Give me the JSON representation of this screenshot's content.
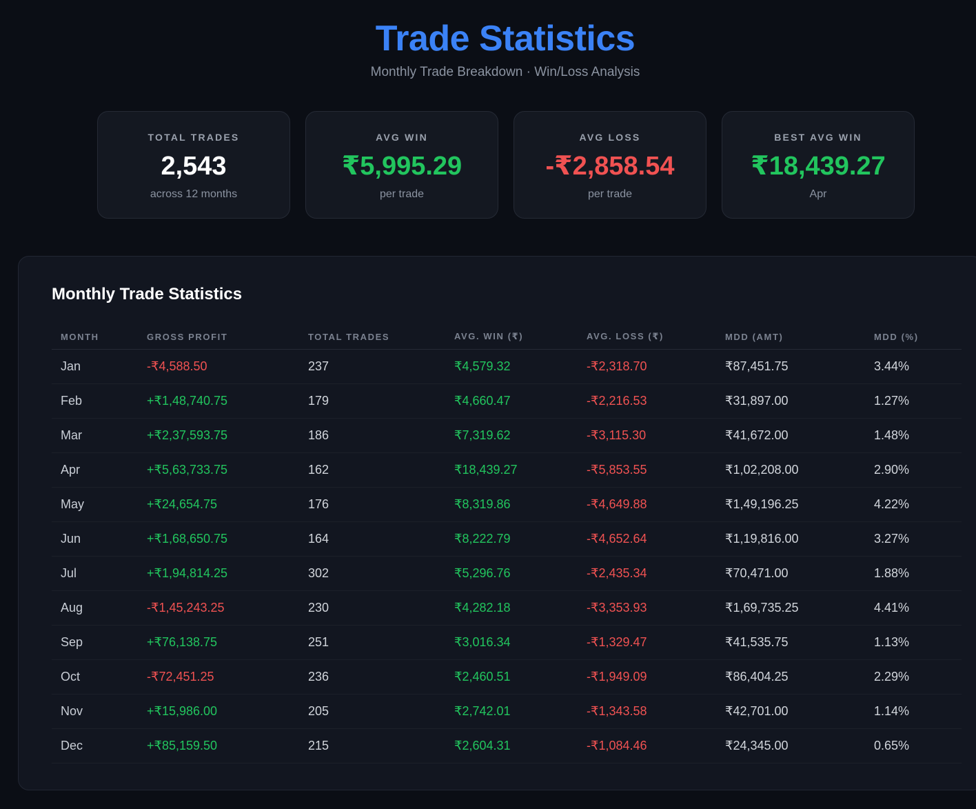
{
  "header": {
    "title": "Trade Statistics",
    "subtitle": "Monthly Trade Breakdown · Win/Loss Analysis"
  },
  "colors": {
    "accent": "#3b82f6",
    "positive": "#22c55e",
    "negative": "#f05252",
    "background": "#0b0e15"
  },
  "cards": [
    {
      "label": "TOTAL TRADES",
      "value": "2,543",
      "sub": "across 12 months",
      "tone": "neutral"
    },
    {
      "label": "AVG WIN",
      "value": "₹5,995.29",
      "sub": "per trade",
      "tone": "pos"
    },
    {
      "label": "AVG LOSS",
      "value": "-₹2,858.54",
      "sub": "per trade",
      "tone": "neg"
    },
    {
      "label": "BEST AVG WIN",
      "value": "₹18,439.27",
      "sub": "Apr",
      "tone": "pos"
    }
  ],
  "table": {
    "title": "Monthly Trade Statistics",
    "columns": [
      "MONTH",
      "GROSS PROFIT",
      "TOTAL TRADES",
      "AVG. WIN (₹)",
      "AVG. LOSS (₹)",
      "MDD (AMT)",
      "MDD (%)"
    ],
    "rows": [
      {
        "month": "Jan",
        "gross": "-₹4,588.50",
        "trades": "237",
        "avg_win": "₹4,579.32",
        "avg_loss": "-₹2,318.70",
        "mdd_amt": "₹87,451.75",
        "mdd_pct": "3.44%"
      },
      {
        "month": "Feb",
        "gross": "+₹1,48,740.75",
        "trades": "179",
        "avg_win": "₹4,660.47",
        "avg_loss": "-₹2,216.53",
        "mdd_amt": "₹31,897.00",
        "mdd_pct": "1.27%"
      },
      {
        "month": "Mar",
        "gross": "+₹2,37,593.75",
        "trades": "186",
        "avg_win": "₹7,319.62",
        "avg_loss": "-₹3,115.30",
        "mdd_amt": "₹41,672.00",
        "mdd_pct": "1.48%"
      },
      {
        "month": "Apr",
        "gross": "+₹5,63,733.75",
        "trades": "162",
        "avg_win": "₹18,439.27",
        "avg_loss": "-₹5,853.55",
        "mdd_amt": "₹1,02,208.00",
        "mdd_pct": "2.90%"
      },
      {
        "month": "May",
        "gross": "+₹24,654.75",
        "trades": "176",
        "avg_win": "₹8,319.86",
        "avg_loss": "-₹4,649.88",
        "mdd_amt": "₹1,49,196.25",
        "mdd_pct": "4.22%"
      },
      {
        "month": "Jun",
        "gross": "+₹1,68,650.75",
        "trades": "164",
        "avg_win": "₹8,222.79",
        "avg_loss": "-₹4,652.64",
        "mdd_amt": "₹1,19,816.00",
        "mdd_pct": "3.27%"
      },
      {
        "month": "Jul",
        "gross": "+₹1,94,814.25",
        "trades": "302",
        "avg_win": "₹5,296.76",
        "avg_loss": "-₹2,435.34",
        "mdd_amt": "₹70,471.00",
        "mdd_pct": "1.88%"
      },
      {
        "month": "Aug",
        "gross": "-₹1,45,243.25",
        "trades": "230",
        "avg_win": "₹4,282.18",
        "avg_loss": "-₹3,353.93",
        "mdd_amt": "₹1,69,735.25",
        "mdd_pct": "4.41%"
      },
      {
        "month": "Sep",
        "gross": "+₹76,138.75",
        "trades": "251",
        "avg_win": "₹3,016.34",
        "avg_loss": "-₹1,329.47",
        "mdd_amt": "₹41,535.75",
        "mdd_pct": "1.13%"
      },
      {
        "month": "Oct",
        "gross": "-₹72,451.25",
        "trades": "236",
        "avg_win": "₹2,460.51",
        "avg_loss": "-₹1,949.09",
        "mdd_amt": "₹86,404.25",
        "mdd_pct": "2.29%"
      },
      {
        "month": "Nov",
        "gross": "+₹15,986.00",
        "trades": "205",
        "avg_win": "₹2,742.01",
        "avg_loss": "-₹1,343.58",
        "mdd_amt": "₹42,701.00",
        "mdd_pct": "1.14%"
      },
      {
        "month": "Dec",
        "gross": "+₹85,159.50",
        "trades": "215",
        "avg_win": "₹2,604.31",
        "avg_loss": "-₹1,084.46",
        "mdd_amt": "₹24,345.00",
        "mdd_pct": "0.65%"
      }
    ]
  }
}
